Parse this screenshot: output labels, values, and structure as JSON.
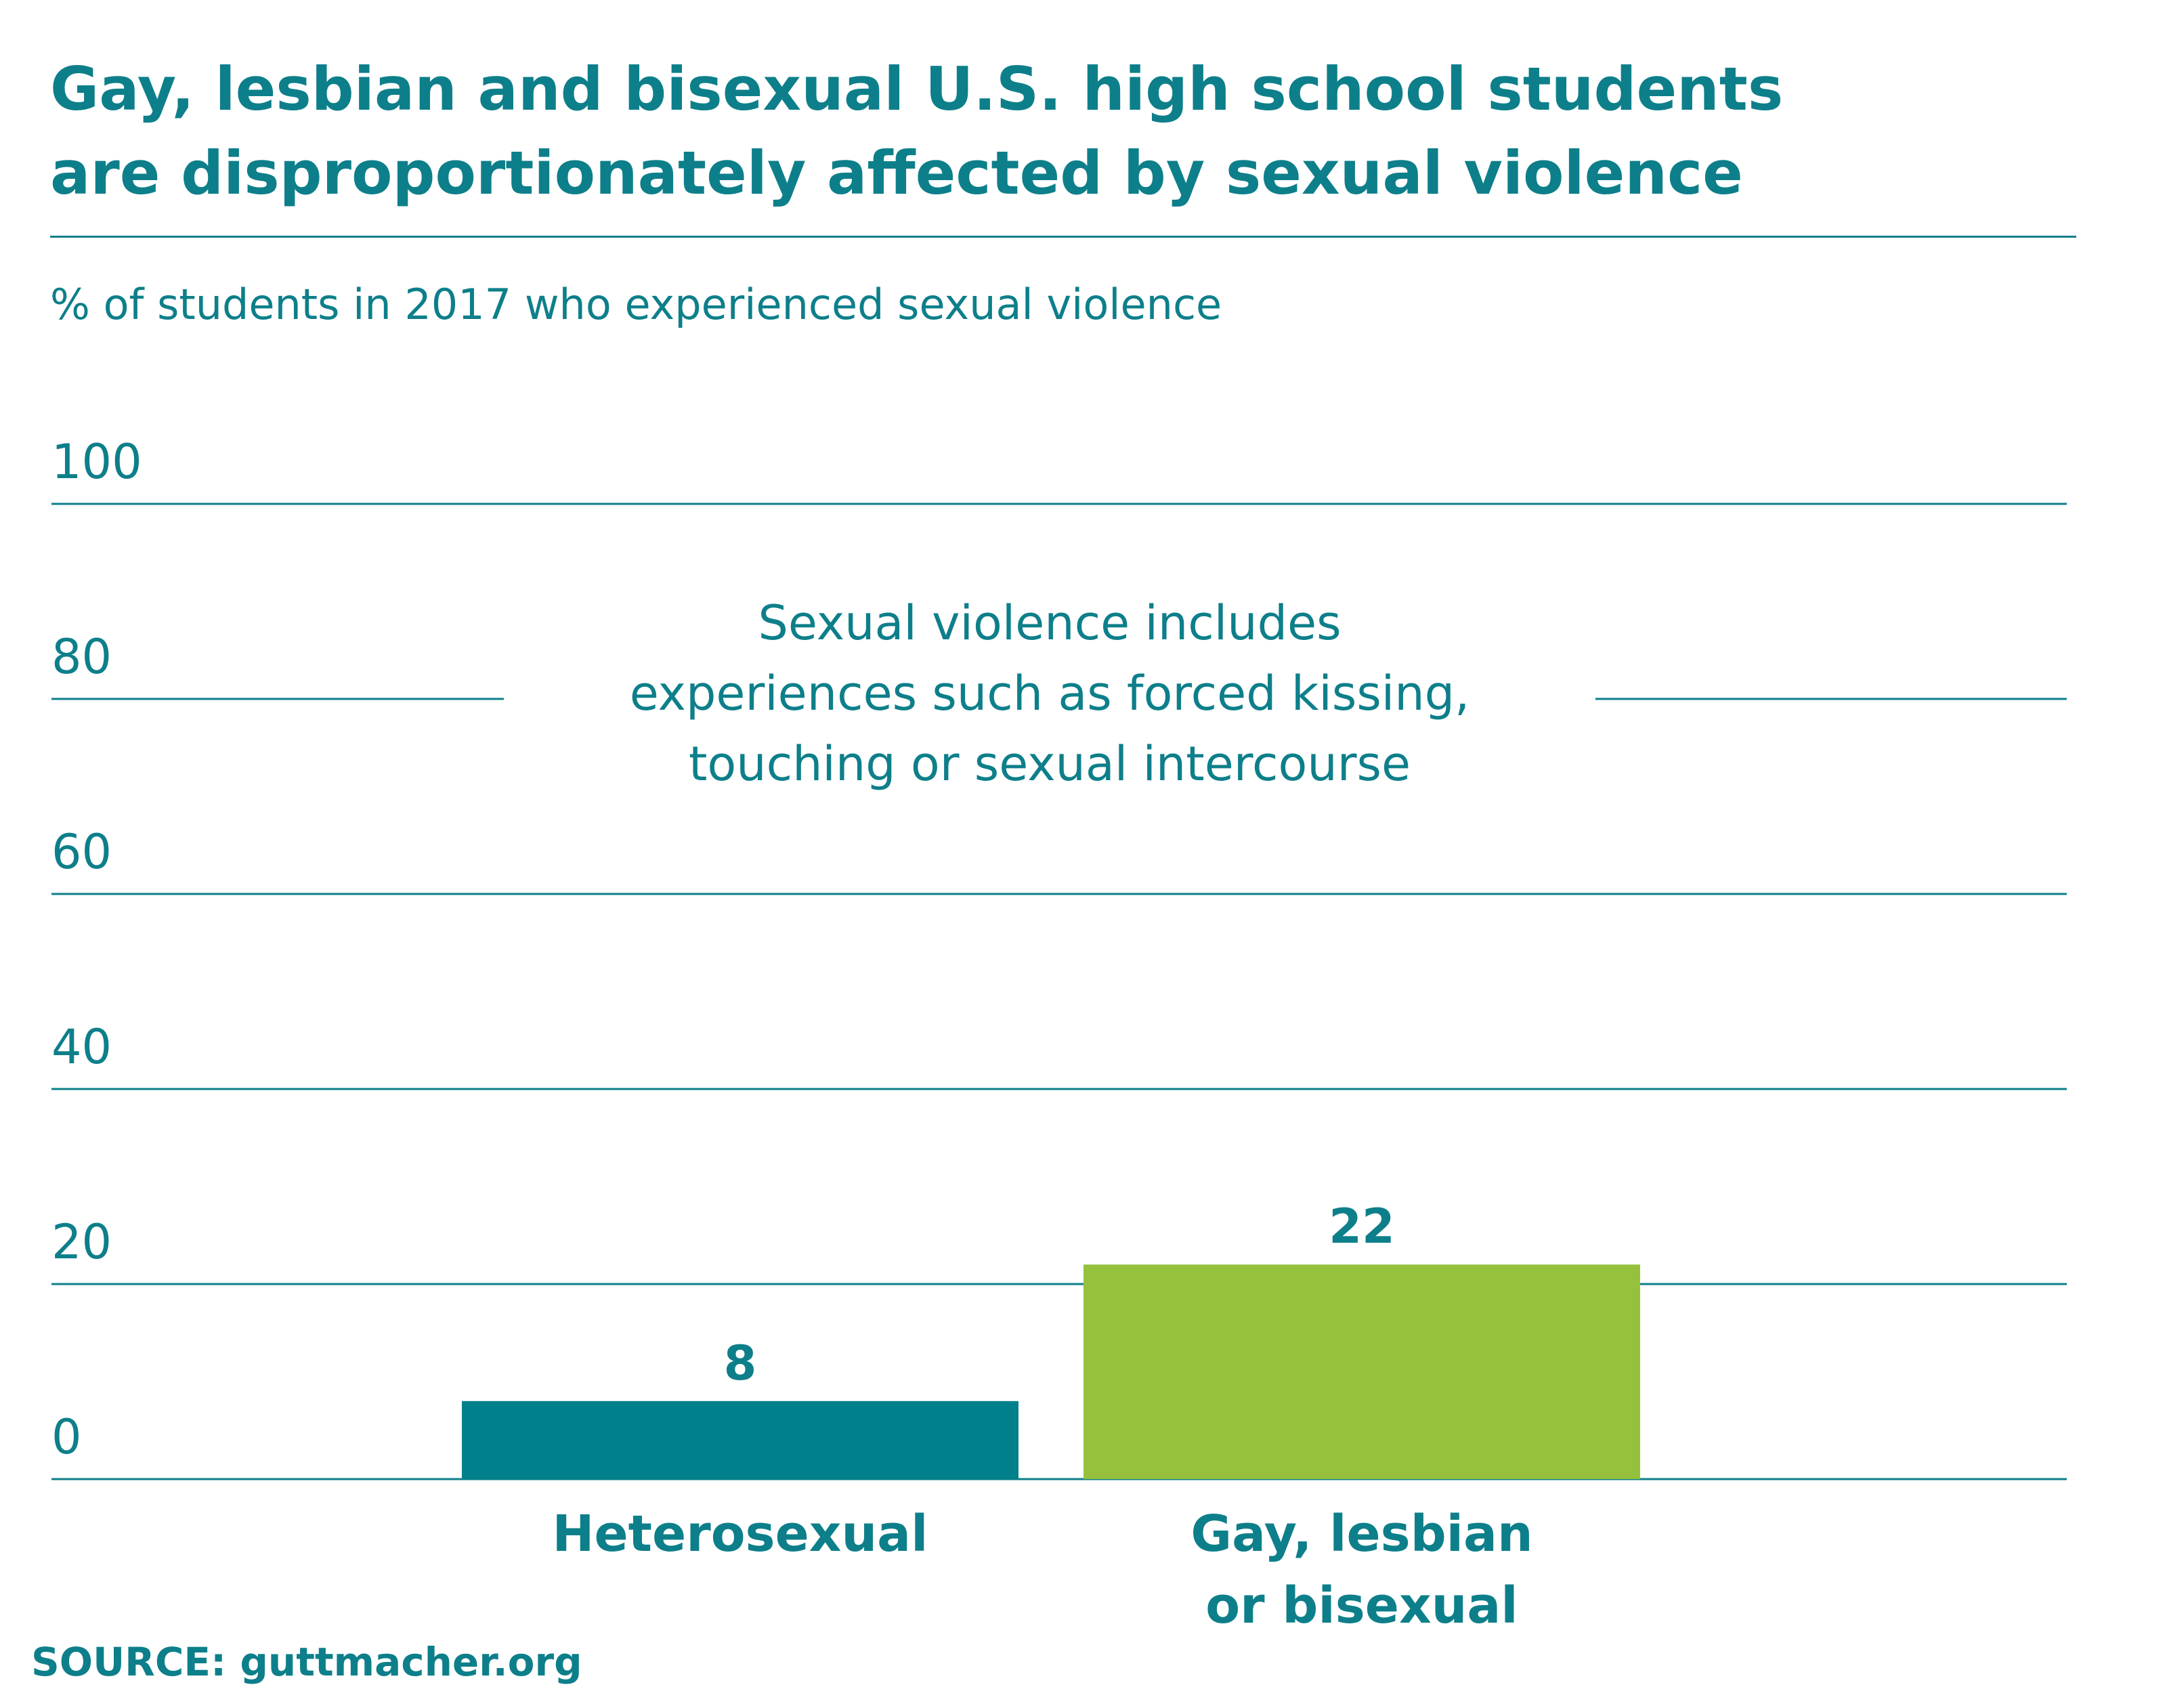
{
  "title_lines": [
    "Gay, lesbian and bisexual U.S. high school students",
    "are disproportionately affected by sexual violence"
  ],
  "source": "SOURCE: guttmacher.org",
  "colors": {
    "text": "#0d7f8a",
    "gridline": "#0d7f8a",
    "heterosexual_bar": "#00808a",
    "glb_bar": "#95c13d"
  },
  "chart_data": {
    "type": "bar",
    "title": "Gay, lesbian and bisexual U.S. high school students are disproportionately affected by sexual violence",
    "subtitle": "% of students in 2017 who experienced sexual violence",
    "categories": [
      "Heterosexual",
      "Gay, lesbian or bisexual"
    ],
    "category_label_lines": [
      [
        "Heterosexual"
      ],
      [
        "Gay, lesbian",
        "or bisexual"
      ]
    ],
    "values": [
      8,
      22
    ],
    "bar_colors": [
      "#00808a",
      "#95c13d"
    ],
    "ylim": [
      0,
      100
    ],
    "yticks": [
      0,
      20,
      40,
      60,
      80,
      100
    ],
    "grid": true,
    "annotation_lines": [
      "Sexual violence includes",
      "experiences such as forced kissing,",
      "touching or sexual intercourse"
    ]
  }
}
